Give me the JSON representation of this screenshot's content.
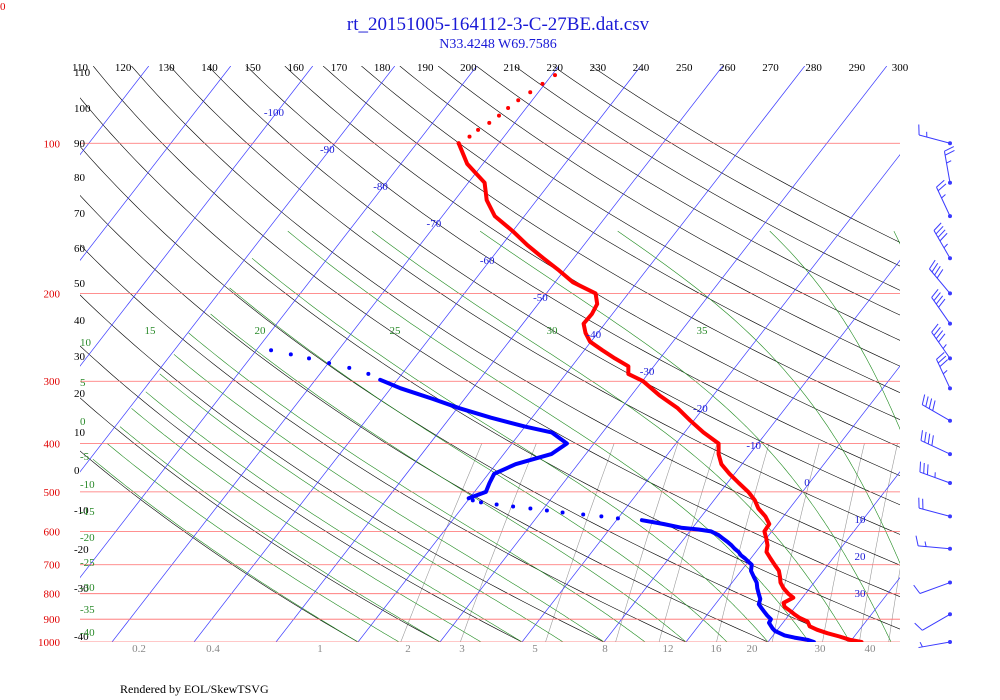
{
  "title": "rt_20151005-164112-3-C-27BE.dat.csv",
  "subtitle": "N33.4248 W69.7586",
  "footer": "Rendered by EOL/SkewTSVG",
  "corner_label": "0",
  "colors": {
    "temperature": "#ff0000",
    "dewpoint": "#0000ff",
    "isobar": "#ff6b6b",
    "isotherm": "#3a3aff",
    "dry_adiabat": "#000000",
    "moist_adiabat": "#1e8a1e",
    "mixing_ratio": "#9a9a9a",
    "wind": "#3a3aff",
    "title": "#1a1ad6"
  },
  "chart_data": {
    "type": "skew-t",
    "title": "rt_20151005-164112-3-C-27BE.dat.csv",
    "subtitle": "N33.4248 W69.7586",
    "pressure_range_hPa": [
      1000,
      70
    ],
    "isobar_labels": [
      "100",
      "200",
      "300",
      "400",
      "500",
      "600",
      "700",
      "800",
      "900",
      "1000"
    ],
    "isobars_hPa": [
      100,
      200,
      300,
      400,
      500,
      600,
      700,
      800,
      900,
      1000
    ],
    "top_tick_labels": [
      "110",
      "120",
      "130",
      "140",
      "150",
      "160",
      "170",
      "180",
      "190",
      "200",
      "210",
      "220",
      "230",
      "240",
      "250",
      "260",
      "270",
      "280",
      "290",
      "300"
    ],
    "isotherm_labels": [
      {
        "t": -100,
        "label": "-100"
      },
      {
        "t": -90,
        "label": "-90"
      },
      {
        "t": -80,
        "label": "-80"
      },
      {
        "t": -70,
        "label": "-70"
      },
      {
        "t": -60,
        "label": "-60"
      },
      {
        "t": -50,
        "label": "-50"
      },
      {
        "t": -40,
        "label": "-40"
      },
      {
        "t": -30,
        "label": "-30"
      },
      {
        "t": -20,
        "label": "-20"
      },
      {
        "t": -10,
        "label": "-10"
      },
      {
        "t": 0,
        "label": "0"
      },
      {
        "t": 10,
        "label": "10"
      },
      {
        "t": 20,
        "label": "20"
      },
      {
        "t": 30,
        "label": "30"
      }
    ],
    "dry_adiabat_labels": [
      "110",
      "100",
      "90",
      "80",
      "70",
      "60",
      "50",
      "40",
      "30",
      "20",
      "10",
      "0",
      "-10",
      "-20",
      "-30",
      "-40"
    ],
    "moist_adiabat_labels": [
      "15",
      "20",
      "25",
      "30",
      "35",
      "10",
      "5",
      "0",
      "-5",
      "-10",
      "-15",
      "-20",
      "-25",
      "-30",
      "-35",
      "-40"
    ],
    "mixing_ratio_labels": [
      "0.2",
      "0.4",
      "1",
      "2",
      "3",
      "5",
      "8",
      "12",
      "16",
      "20",
      "30",
      "40"
    ],
    "temperature_profile": [
      [
        1000,
        21.4
      ],
      [
        990,
        19.8
      ],
      [
        975,
        18.2
      ],
      [
        960,
        16.4
      ],
      [
        945,
        14.8
      ],
      [
        930,
        13.6
      ],
      [
        910,
        12.9
      ],
      [
        895,
        11.6
      ],
      [
        880,
        10.6
      ],
      [
        870,
        10.0
      ],
      [
        850,
        8.7
      ],
      [
        835,
        8.2
      ],
      [
        815,
        8.9
      ],
      [
        800,
        7.9
      ],
      [
        780,
        6.8
      ],
      [
        760,
        5.9
      ],
      [
        740,
        5.3
      ],
      [
        720,
        4.6
      ],
      [
        700,
        3.5
      ],
      [
        680,
        2.4
      ],
      [
        660,
        1.3
      ],
      [
        640,
        0.8
      ],
      [
        620,
        0.0
      ],
      [
        600,
        -0.9
      ],
      [
        580,
        -1.0
      ],
      [
        560,
        -2.2
      ],
      [
        540,
        -3.8
      ],
      [
        520,
        -5.0
      ],
      [
        500,
        -6.6
      ],
      [
        480,
        -8.6
      ],
      [
        460,
        -10.6
      ],
      [
        440,
        -12.5
      ],
      [
        420,
        -13.8
      ],
      [
        400,
        -14.8
      ],
      [
        380,
        -17.7
      ],
      [
        360,
        -20.4
      ],
      [
        340,
        -23.1
      ],
      [
        320,
        -26.6
      ],
      [
        300,
        -29.9
      ],
      [
        290,
        -32.4
      ],
      [
        280,
        -33.1
      ],
      [
        270,
        -35.5
      ],
      [
        260,
        -37.8
      ],
      [
        250,
        -40.1
      ],
      [
        240,
        -41.5
      ],
      [
        230,
        -42.6
      ],
      [
        220,
        -42.5
      ],
      [
        210,
        -42.8
      ],
      [
        200,
        -44.0
      ],
      [
        190,
        -47.8
      ],
      [
        180,
        -50.6
      ],
      [
        170,
        -53.7
      ],
      [
        160,
        -56.9
      ],
      [
        150,
        -60.0
      ],
      [
        140,
        -63.6
      ],
      [
        130,
        -66.1
      ],
      [
        120,
        -68.0
      ],
      [
        110,
        -71.9
      ],
      [
        100,
        -74.9
      ]
    ],
    "temperature_profile_sparse": [
      [
        100,
        -74.9
      ],
      [
        97,
        -74.2
      ],
      [
        94,
        -73.8
      ],
      [
        91,
        -73.1
      ],
      [
        88,
        -72.6
      ],
      [
        85,
        -72.2
      ],
      [
        82,
        -71.7
      ],
      [
        79,
        -71.0
      ],
      [
        76,
        -70.3
      ],
      [
        73,
        -69.6
      ]
    ],
    "dewpoint_profile": [
      [
        1000,
        15.6
      ],
      [
        990,
        14.6
      ],
      [
        980,
        12.8
      ],
      [
        970,
        11.4
      ],
      [
        960,
        10.6
      ],
      [
        950,
        9.8
      ],
      [
        940,
        9.3
      ],
      [
        930,
        8.9
      ],
      [
        915,
        8.3
      ],
      [
        900,
        8.2
      ],
      [
        885,
        7.4
      ],
      [
        870,
        6.7
      ],
      [
        855,
        6.0
      ],
      [
        840,
        5.3
      ],
      [
        820,
        5.0
      ],
      [
        800,
        4.3
      ],
      [
        780,
        3.6
      ],
      [
        760,
        3.0
      ],
      [
        740,
        2.1
      ],
      [
        720,
        1.2
      ],
      [
        700,
        0.7
      ],
      [
        690,
        0.0
      ],
      [
        680,
        -0.7
      ],
      [
        670,
        -1.5
      ],
      [
        660,
        -2.1
      ],
      [
        650,
        -2.9
      ],
      [
        640,
        -3.6
      ],
      [
        630,
        -4.4
      ],
      [
        620,
        -5.3
      ],
      [
        610,
        -6.2
      ],
      [
        600,
        -7.4
      ],
      [
        595,
        -9.1
      ],
      [
        590,
        -11.4
      ],
      [
        580,
        -13.9
      ],
      [
        570,
        -16.9
      ]
    ],
    "dewpoint_profile_sparse": [
      [
        565,
        -20.0
      ],
      [
        560,
        -22.2
      ],
      [
        555,
        -24.6
      ],
      [
        550,
        -27.3
      ],
      [
        545,
        -29.4
      ],
      [
        540,
        -31.6
      ],
      [
        535,
        -33.9
      ],
      [
        530,
        -36.1
      ],
      [
        525,
        -38.2
      ],
      [
        520,
        -39.4
      ]
    ],
    "dewpoint_profile_upper": [
      [
        515,
        -40.1
      ],
      [
        500,
        -38.6
      ],
      [
        480,
        -39.0
      ],
      [
        460,
        -39.3
      ],
      [
        440,
        -37.6
      ],
      [
        420,
        -34.2
      ],
      [
        400,
        -33.3
      ],
      [
        380,
        -36.2
      ],
      [
        370,
        -40.0
      ],
      [
        355,
        -45.0
      ],
      [
        340,
        -49.7
      ],
      [
        325,
        -54.0
      ],
      [
        310,
        -58.8
      ],
      [
        298,
        -62.1
      ]
    ],
    "dewpoint_profile_upper_sparse": [
      [
        290,
        -64.1
      ],
      [
        282,
        -67.0
      ],
      [
        276,
        -69.9
      ],
      [
        270,
        -72.8
      ],
      [
        265,
        -75.4
      ],
      [
        260,
        -78.2
      ]
    ],
    "wind_barbs": [
      {
        "p": 100,
        "dir": 285,
        "spd": 15
      },
      {
        "p": 120,
        "dir": 350,
        "spd": 25
      },
      {
        "p": 140,
        "dir": 335,
        "spd": 25
      },
      {
        "p": 170,
        "dir": 330,
        "spd": 45
      },
      {
        "p": 200,
        "dir": 320,
        "spd": 40
      },
      {
        "p": 230,
        "dir": 325,
        "spd": 40
      },
      {
        "p": 270,
        "dir": 325,
        "spd": 45
      },
      {
        "p": 310,
        "dir": 335,
        "spd": 35
      },
      {
        "p": 360,
        "dir": 300,
        "spd": 40
      },
      {
        "p": 420,
        "dir": 295,
        "spd": 40
      },
      {
        "p": 480,
        "dir": 290,
        "spd": 35
      },
      {
        "p": 560,
        "dir": 285,
        "spd": 20
      },
      {
        "p": 650,
        "dir": 275,
        "spd": 15
      },
      {
        "p": 760,
        "dir": 250,
        "spd": 10
      },
      {
        "p": 880,
        "dir": 240,
        "spd": 10
      },
      {
        "p": 1000,
        "dir": 260,
        "spd": 5
      }
    ]
  }
}
